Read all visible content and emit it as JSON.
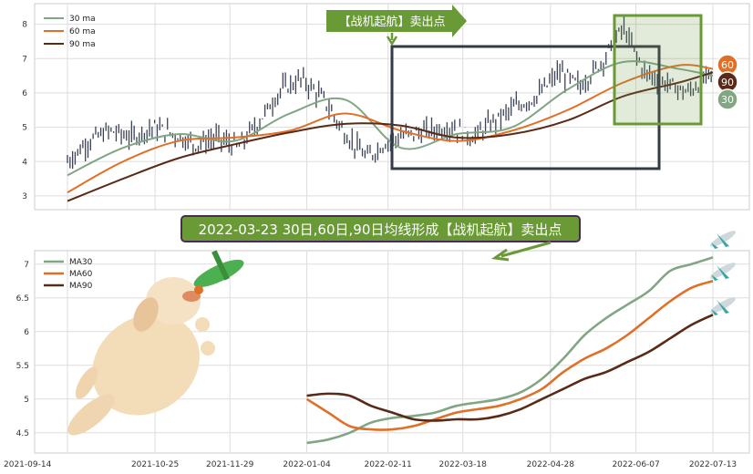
{
  "chart_data": [
    {
      "type": "candlestick",
      "legend": [
        "30 ma",
        "60 ma",
        "90 ma"
      ],
      "legend_position": "top-left",
      "grid": true,
      "y_ticks": [
        3,
        4,
        5,
        6,
        7,
        8
      ],
      "ylim": [
        2.6,
        8.6
      ],
      "x_range": [
        "2021-09-14",
        "2022-07-13"
      ],
      "series": [
        {
          "name": "30 ma",
          "color": "#80a684",
          "x": [
            "2021-09-14",
            "2021-10-10",
            "2021-11-05",
            "2021-12-01",
            "2021-12-27",
            "2022-01-22",
            "2022-02-17",
            "2022-03-15",
            "2022-04-10",
            "2022-05-06",
            "2022-06-01",
            "2022-06-27",
            "2022-07-13"
          ],
          "y": [
            3.6,
            4.4,
            4.8,
            4.6,
            5.4,
            5.8,
            4.4,
            4.8,
            5.0,
            6.1,
            6.9,
            6.7,
            6.5
          ]
        },
        {
          "name": "60 ma",
          "color": "#e07028",
          "x": [
            "2021-09-14",
            "2021-10-10",
            "2021-11-05",
            "2021-12-01",
            "2021-12-27",
            "2022-01-22",
            "2022-02-17",
            "2022-03-15",
            "2022-04-10",
            "2022-05-06",
            "2022-06-01",
            "2022-06-27",
            "2022-07-13"
          ],
          "y": [
            3.1,
            4.0,
            4.6,
            4.7,
            4.9,
            5.4,
            4.9,
            4.6,
            4.9,
            5.5,
            6.3,
            6.8,
            6.7
          ]
        },
        {
          "name": "90 ma",
          "color": "#5a2a18",
          "x": [
            "2021-09-14",
            "2021-10-10",
            "2021-11-05",
            "2021-12-01",
            "2021-12-27",
            "2022-01-22",
            "2022-02-17",
            "2022-03-15",
            "2022-04-10",
            "2022-05-06",
            "2022-06-01",
            "2022-06-27",
            "2022-07-13"
          ],
          "y": [
            2.85,
            3.5,
            4.1,
            4.5,
            4.85,
            5.1,
            5.05,
            4.7,
            4.8,
            5.2,
            5.9,
            6.3,
            6.6
          ]
        }
      ],
      "price_series": {
        "x": [
          "2021-09-14",
          "2021-09-24",
          "2021-10-04",
          "2021-10-14",
          "2021-10-24",
          "2021-11-03",
          "2021-11-13",
          "2021-11-23",
          "2021-12-03",
          "2021-12-13",
          "2021-12-23",
          "2022-01-02",
          "2022-01-12",
          "2022-01-22",
          "2022-02-01",
          "2022-02-11",
          "2022-02-21",
          "2022-03-03",
          "2022-03-13",
          "2022-03-23",
          "2022-04-02",
          "2022-04-12",
          "2022-04-22",
          "2022-05-02",
          "2022-05-12",
          "2022-05-22",
          "2022-06-01",
          "2022-06-11",
          "2022-06-21",
          "2022-07-01",
          "2022-07-13"
        ],
        "y": [
          4.0,
          4.6,
          4.9,
          4.7,
          5.0,
          4.8,
          4.5,
          4.7,
          4.4,
          5.2,
          6.1,
          6.4,
          5.8,
          4.8,
          4.1,
          4.6,
          4.8,
          4.9,
          5.0,
          4.7,
          5.2,
          5.6,
          5.9,
          6.6,
          6.2,
          6.9,
          7.9,
          6.6,
          6.3,
          6.0,
          6.6
        ]
      },
      "badges": [
        "60",
        "90",
        "30"
      ],
      "annotation": "【战机起航】卖出点"
    },
    {
      "type": "line",
      "title_banner": "2022-03-23 30日,60日,90日均线形成【战机起航】卖出点",
      "legend": [
        "MA30",
        "MA60",
        "MA90"
      ],
      "legend_position": "top-left",
      "grid": true,
      "y_ticks": [
        4.5,
        5.0,
        5.5,
        6.0,
        6.5,
        7.0
      ],
      "ylim": [
        4.2,
        7.2
      ],
      "x_tick_labels": [
        "2021-09-14",
        "2021-10-25",
        "2021-11-29",
        "2022-01-04",
        "2022-02-11",
        "2022-03-18",
        "2022-04-28",
        "2022-06-07",
        "2022-07-13"
      ],
      "x_range": [
        "2021-09-14",
        "2022-07-13"
      ],
      "series": [
        {
          "name": "MA30",
          "color": "#80a684",
          "x": [
            "2022-01-04",
            "2022-01-14",
            "2022-01-24",
            "2022-02-03",
            "2022-02-13",
            "2022-02-23",
            "2022-03-05",
            "2022-03-15",
            "2022-03-25",
            "2022-04-04",
            "2022-04-14",
            "2022-04-24",
            "2022-05-04",
            "2022-05-14",
            "2022-05-24",
            "2022-06-03",
            "2022-06-13",
            "2022-06-23",
            "2022-07-03",
            "2022-07-13"
          ],
          "y": [
            4.35,
            4.4,
            4.5,
            4.65,
            4.72,
            4.75,
            4.8,
            4.9,
            4.95,
            5.0,
            5.1,
            5.3,
            5.6,
            5.95,
            6.2,
            6.4,
            6.6,
            6.9,
            7.0,
            7.1
          ]
        },
        {
          "name": "MA60",
          "color": "#e07028",
          "x": [
            "2022-01-04",
            "2022-01-14",
            "2022-01-24",
            "2022-02-03",
            "2022-02-13",
            "2022-02-23",
            "2022-03-05",
            "2022-03-15",
            "2022-03-25",
            "2022-04-04",
            "2022-04-14",
            "2022-04-24",
            "2022-05-04",
            "2022-05-14",
            "2022-05-24",
            "2022-06-03",
            "2022-06-13",
            "2022-06-23",
            "2022-07-03",
            "2022-07-13"
          ],
          "y": [
            5.0,
            4.8,
            4.6,
            4.55,
            4.55,
            4.6,
            4.7,
            4.8,
            4.85,
            4.9,
            5.0,
            5.15,
            5.4,
            5.6,
            5.75,
            5.95,
            6.2,
            6.45,
            6.65,
            6.75
          ]
        },
        {
          "name": "MA90",
          "color": "#5a2a18",
          "x": [
            "2022-01-04",
            "2022-01-14",
            "2022-01-24",
            "2022-02-03",
            "2022-02-13",
            "2022-02-23",
            "2022-03-05",
            "2022-03-15",
            "2022-03-25",
            "2022-04-04",
            "2022-04-14",
            "2022-04-24",
            "2022-05-04",
            "2022-05-14",
            "2022-05-24",
            "2022-06-03",
            "2022-06-13",
            "2022-06-23",
            "2022-07-03",
            "2022-07-13"
          ],
          "y": [
            5.05,
            5.08,
            5.05,
            4.9,
            4.8,
            4.7,
            4.68,
            4.7,
            4.7,
            4.75,
            4.85,
            5.0,
            5.15,
            5.3,
            5.4,
            5.55,
            5.7,
            5.9,
            6.1,
            6.25
          ]
        }
      ]
    }
  ]
}
